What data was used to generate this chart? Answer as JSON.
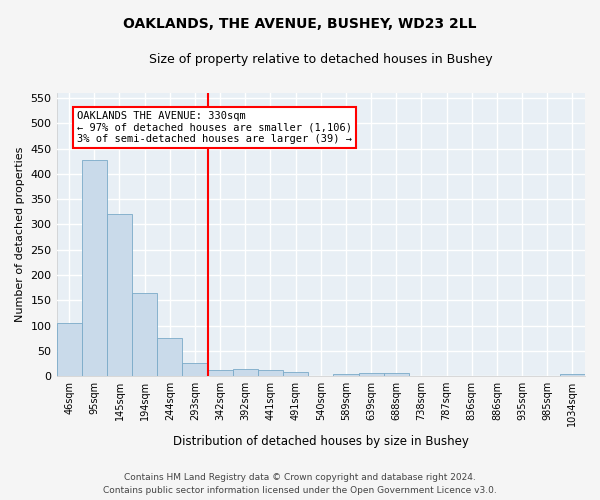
{
  "title": "OAKLANDS, THE AVENUE, BUSHEY, WD23 2LL",
  "subtitle": "Size of property relative to detached houses in Bushey",
  "xlabel": "Distribution of detached houses by size in Bushey",
  "ylabel": "Number of detached properties",
  "bar_color": "#c9daea",
  "bar_edge_color": "#7aaac8",
  "plot_bg_color": "#e8eff5",
  "fig_bg_color": "#f5f5f5",
  "grid_color": "#ffffff",
  "categories": [
    "46sqm",
    "95sqm",
    "145sqm",
    "194sqm",
    "244sqm",
    "293sqm",
    "342sqm",
    "392sqm",
    "441sqm",
    "491sqm",
    "540sqm",
    "589sqm",
    "639sqm",
    "688sqm",
    "738sqm",
    "787sqm",
    "836sqm",
    "886sqm",
    "935sqm",
    "985sqm",
    "1034sqm"
  ],
  "values": [
    104,
    428,
    321,
    164,
    76,
    26,
    11,
    13,
    11,
    8,
    0,
    5,
    6,
    6,
    0,
    0,
    0,
    0,
    0,
    0,
    5
  ],
  "ylim": [
    0,
    560
  ],
  "yticks": [
    0,
    50,
    100,
    150,
    200,
    250,
    300,
    350,
    400,
    450,
    500,
    550
  ],
  "marker_bar_index": 6,
  "marker_label": "OAKLANDS THE AVENUE: 330sqm",
  "marker_line1": "← 97% of detached houses are smaller (1,106)",
  "marker_line2": "3% of semi-detached houses are larger (39) →",
  "footer_line1": "Contains HM Land Registry data © Crown copyright and database right 2024.",
  "footer_line2": "Contains public sector information licensed under the Open Government Licence v3.0."
}
